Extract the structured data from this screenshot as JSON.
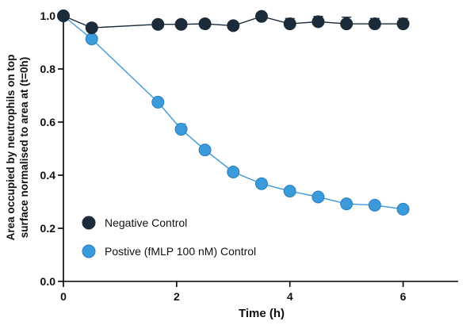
{
  "chart_data": {
    "type": "line",
    "xlabel": "Time (h)",
    "ylabel_line1": "Area occupied by neutrophils on top",
    "ylabel_line2": "surface normalised to area at (t=0h)",
    "xlim": [
      0,
      7
    ],
    "ylim": [
      0,
      1.0
    ],
    "x_ticks": [
      "0",
      "2",
      "4",
      "6"
    ],
    "y_ticks": [
      "0.0",
      "0.2",
      "0.4",
      "0.6",
      "0.8",
      "1.0"
    ],
    "grid": false,
    "legend_position": "bottom-left",
    "series": [
      {
        "name": "Negative Control",
        "color": "#1c2b3a",
        "x": [
          0,
          0.5,
          1.67,
          2.08,
          2.5,
          3.0,
          3.5,
          4.0,
          4.5,
          5.0,
          5.5,
          6.0
        ],
        "y": [
          1.0,
          0.955,
          0.968,
          0.968,
          0.97,
          0.963,
          0.998,
          0.97,
          0.978,
          0.97,
          0.97,
          0.97
        ],
        "error": [
          0,
          0.015,
          0,
          0,
          0,
          0,
          0,
          0.02,
          0.02,
          0.025,
          0.02,
          0.02
        ]
      },
      {
        "name": "Postive (fMLP 100 nM) Control",
        "color": "#3b9ad9",
        "x": [
          0,
          0.5,
          1.67,
          2.08,
          2.5,
          3.0,
          3.5,
          4.0,
          4.5,
          5.0,
          5.5,
          6.0
        ],
        "y": [
          1.0,
          0.913,
          0.675,
          0.573,
          0.495,
          0.412,
          0.368,
          0.34,
          0.318,
          0.292,
          0.287,
          0.272
        ],
        "error": [
          0,
          0,
          0,
          0.02,
          0,
          0,
          0,
          0,
          0,
          0,
          0,
          0
        ]
      }
    ]
  }
}
